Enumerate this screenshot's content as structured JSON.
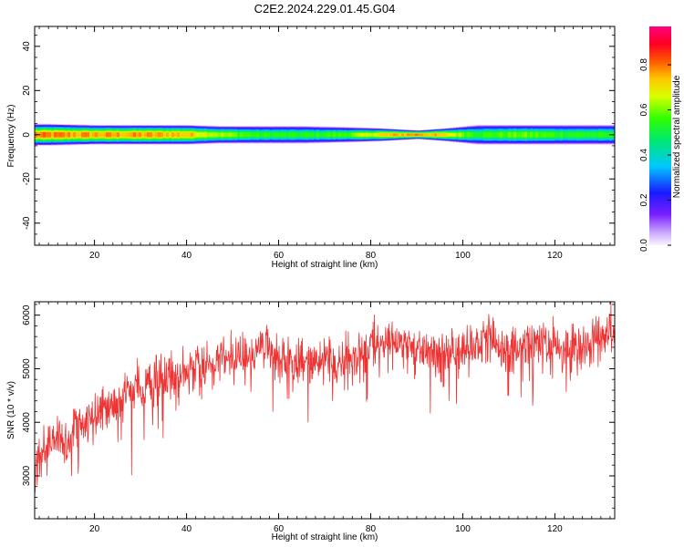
{
  "title": "C2E2.2024.229.01.45.G04",
  "chart_data": [
    {
      "type": "heatmap",
      "xlabel": "Height of straight line (km)",
      "ylabel": "Frequency (Hz)",
      "xlim": [
        7,
        133
      ],
      "ylim": [
        -50,
        49
      ],
      "x_ticks": [
        20,
        40,
        60,
        80,
        100,
        120
      ],
      "y_ticks": [
        -40,
        -20,
        0,
        20,
        40
      ],
      "grid": false,
      "colorbar": {
        "label": "Normalized spectral amplitude",
        "range": [
          0,
          0.97
        ],
        "ticks": [
          "0.0",
          "0.2",
          "0.4",
          "0.6",
          "0.8"
        ],
        "colormap": "rainbow: white-lavender (0) → purple → blue → cyan → green → yellow → orange → red → magenta (1)"
      },
      "band": {
        "center_frequency_hz": 0,
        "samples": [
          {
            "height_km": 7,
            "half_width_hz": 5,
            "peak_amplitude": 0.9
          },
          {
            "height_km": 10,
            "half_width_hz": 5,
            "peak_amplitude": 0.9
          },
          {
            "height_km": 20,
            "half_width_hz": 4.5,
            "peak_amplitude": 0.88
          },
          {
            "height_km": 30,
            "half_width_hz": 4.5,
            "peak_amplitude": 0.88
          },
          {
            "height_km": 40,
            "half_width_hz": 4.5,
            "peak_amplitude": 0.85
          },
          {
            "height_km": 47,
            "half_width_hz": 4,
            "peak_amplitude": 0.72
          },
          {
            "height_km": 55,
            "half_width_hz": 4,
            "peak_amplitude": 0.62
          },
          {
            "height_km": 65,
            "half_width_hz": 4,
            "peak_amplitude": 0.6
          },
          {
            "height_km": 75,
            "half_width_hz": 3.5,
            "peak_amplitude": 0.66
          },
          {
            "height_km": 82,
            "half_width_hz": 3,
            "peak_amplitude": 0.82
          },
          {
            "height_km": 90,
            "half_width_hz": 2,
            "peak_amplitude": 0.92
          },
          {
            "height_km": 96,
            "half_width_hz": 3,
            "peak_amplitude": 0.8
          },
          {
            "height_km": 103,
            "half_width_hz": 4.5,
            "peak_amplitude": 0.62
          },
          {
            "height_km": 112,
            "half_width_hz": 4.5,
            "peak_amplitude": 0.68
          },
          {
            "height_km": 122,
            "half_width_hz": 4.5,
            "peak_amplitude": 0.62
          },
          {
            "height_km": 133,
            "half_width_hz": 4.5,
            "peak_amplitude": 0.6
          }
        ]
      }
    },
    {
      "type": "line",
      "xlabel": "Height of straight line (km)",
      "ylabel": "SNR (10 * v/v)",
      "xlim": [
        7,
        133
      ],
      "ylim": [
        2200,
        6250
      ],
      "x_ticks": [
        20,
        40,
        60,
        80,
        100,
        120
      ],
      "y_ticks": [
        3000,
        4000,
        5000,
        6000
      ],
      "grid": false,
      "series": [
        {
          "color": "#ee3333",
          "x": [
            7,
            8,
            9,
            10,
            11,
            12,
            13,
            14,
            15,
            16,
            18,
            20,
            22,
            24,
            26,
            28,
            30,
            32,
            34,
            36,
            38,
            40,
            42,
            44,
            46,
            48,
            50,
            52,
            54,
            56,
            58,
            60,
            62,
            64,
            66,
            68,
            70,
            72,
            74,
            76,
            78,
            80,
            82,
            84,
            86,
            88,
            90,
            92,
            94,
            96,
            98,
            100,
            102,
            104,
            106,
            108,
            110,
            112,
            114,
            116,
            118,
            120,
            122,
            124,
            126,
            128,
            130,
            132,
            133
          ],
          "y": [
            3000,
            3200,
            3400,
            3500,
            3650,
            3700,
            3600,
            3500,
            3750,
            3800,
            4000,
            4150,
            4250,
            4350,
            4450,
            4550,
            4650,
            4700,
            4800,
            4850,
            4900,
            4950,
            5000,
            5100,
            5150,
            5200,
            5200,
            5150,
            5250,
            5350,
            5300,
            5250,
            5150,
            5100,
            5150,
            5100,
            5100,
            5150,
            5200,
            5150,
            5250,
            5450,
            5400,
            5500,
            5500,
            5450,
            5400,
            5350,
            5300,
            5250,
            5300,
            5350,
            5400,
            5450,
            5550,
            5450,
            5350,
            5400,
            5450,
            5450,
            5500,
            5450,
            5350,
            5350,
            5400,
            5450,
            5500,
            5550,
            5600
          ]
        }
      ]
    }
  ]
}
